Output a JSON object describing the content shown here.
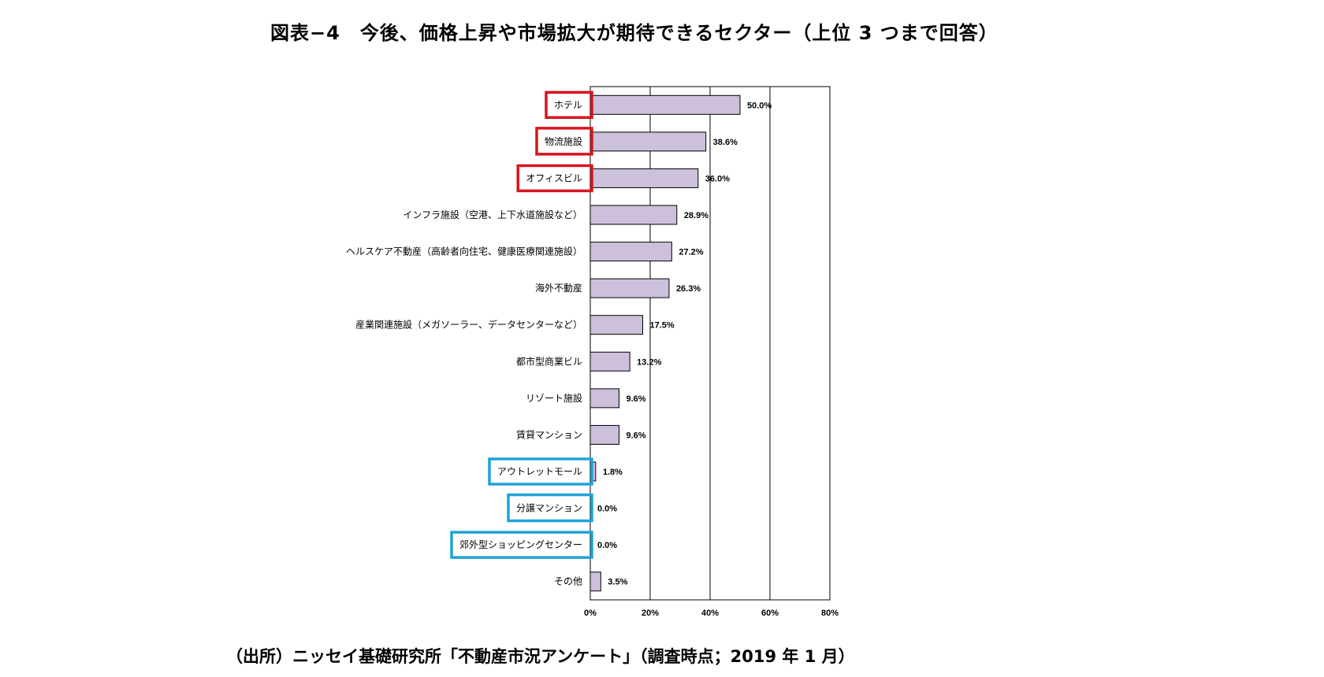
{
  "title": "図表−4　今後、価格上昇や市場拡大が期待できるセクター（上位 3 つまで回答）",
  "source": "（出所）ニッセイ基礎研究所「不動産市況アンケート」（調査時点；2019 年 1 月）",
  "chart_data": {
    "type": "bar",
    "orientation": "horizontal",
    "categories": [
      "ホテル",
      "物流施設",
      "オフィスビル",
      "インフラ施設（空港、上下水道施設など）",
      "ヘルスケア不動産（高齢者向住宅、健康医療関連施設）",
      "海外不動産",
      "産業関連施設（メガソーラー、データセンターなど）",
      "都市型商業ビル",
      "リゾート施設",
      "賃貸マンション",
      "アウトレットモール",
      "分譲マンション",
      "郊外型ショッピングセンター",
      "その他"
    ],
    "values": [
      50.0,
      38.6,
      36.0,
      28.9,
      27.2,
      26.3,
      17.5,
      13.2,
      9.6,
      9.6,
      1.8,
      0.0,
      0.0,
      3.5
    ],
    "value_labels": [
      "50.0%",
      "38.6%",
      "36.0%",
      "28.9%",
      "27.2%",
      "26.3%",
      "17.5%",
      "13.2%",
      "9.6%",
      "9.6%",
      "1.8%",
      "0.0%",
      "0.0%",
      "3.5%"
    ],
    "xlim": [
      0,
      80
    ],
    "x_ticks": [
      "0%",
      "20%",
      "40%",
      "60%",
      "80%"
    ],
    "grid": true,
    "bar_color": "#ccc0da",
    "highlight_top": [
      0,
      1,
      2
    ],
    "highlight_bottom": [
      10,
      11,
      12
    ],
    "highlight_top_color": "#d9141e",
    "highlight_bottom_color": "#1fa3d8"
  }
}
